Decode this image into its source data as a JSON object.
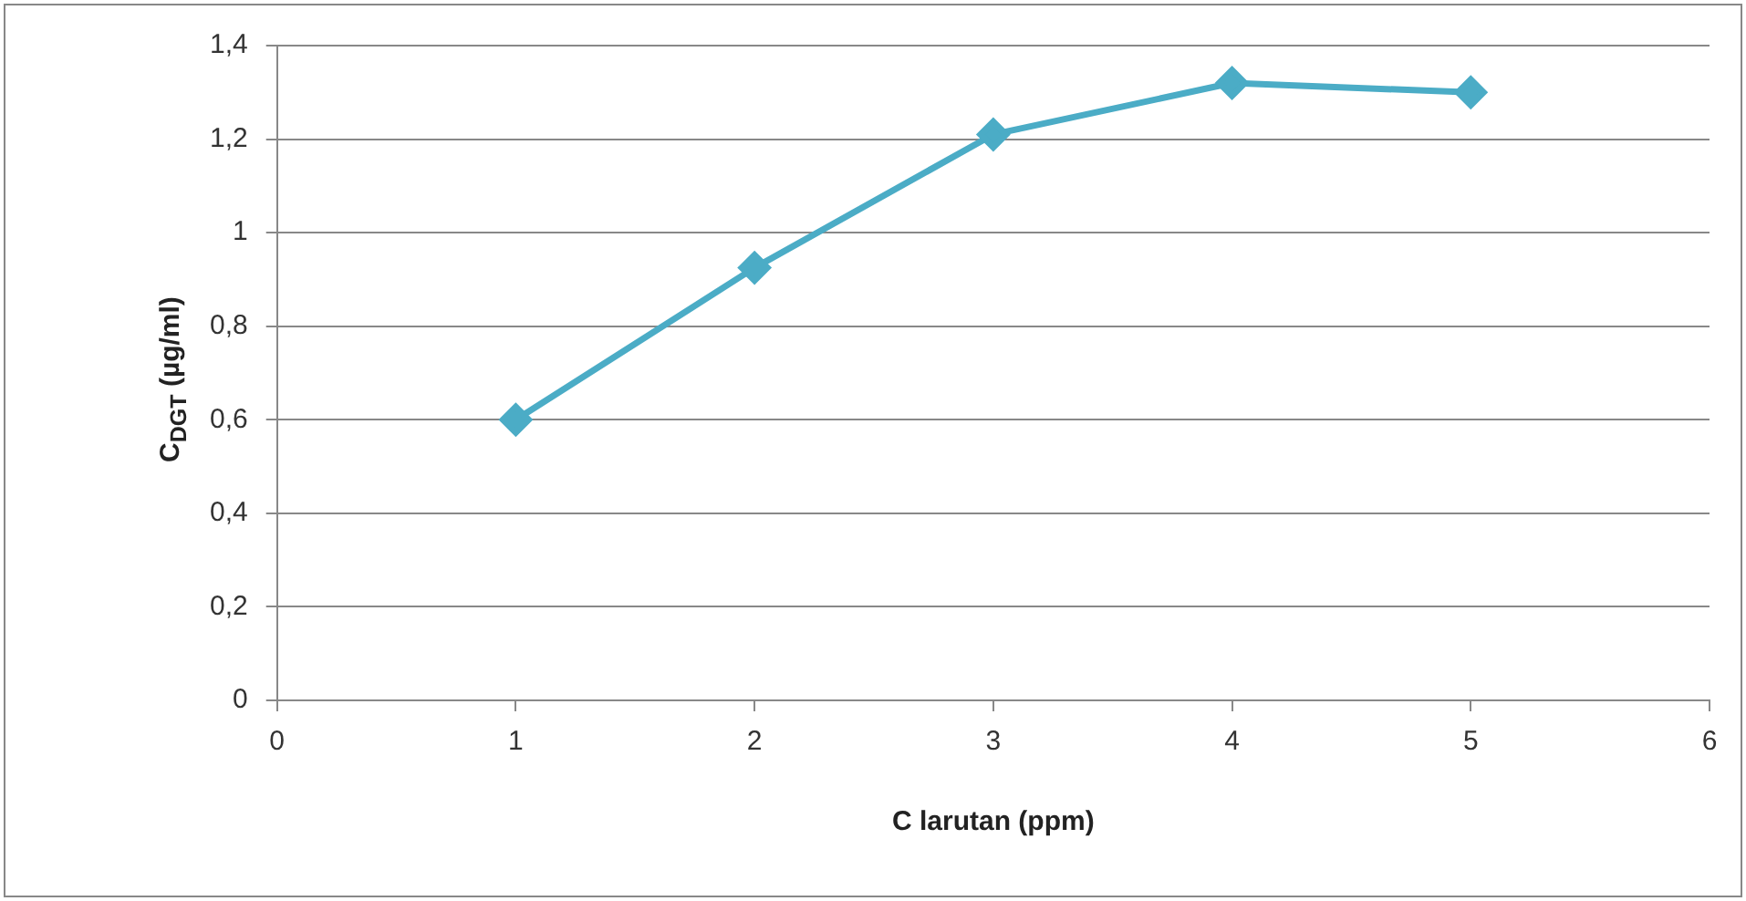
{
  "chart_data": {
    "type": "line",
    "xlabel": "C larutan (ppm)",
    "ylabel": "C$_{DGT}$ (µg/ml)",
    "x": [
      1,
      2,
      3,
      4,
      5
    ],
    "series": [
      {
        "color": "#4bacc6",
        "values": [
          0.6,
          0.925,
          1.21,
          1.32,
          1.3
        ]
      }
    ],
    "xlim": [
      0,
      6
    ],
    "xticks": [
      0,
      1,
      2,
      3,
      4,
      5,
      6
    ],
    "ylim": [
      0,
      1.4
    ],
    "yticks": [
      0,
      {
        "value": 0.2,
        "label": "0,2"
      },
      {
        "value": 0.4,
        "label": "0,4"
      },
      {
        "value": 0.6,
        "label": "0,6"
      },
      {
        "value": 0.8,
        "label": "0,8"
      },
      1,
      {
        "value": 1.2,
        "label": "1,2"
      },
      {
        "value": 1.4,
        "label": "1,4"
      }
    ],
    "grid": "y",
    "legend": false,
    "marker": "diamond",
    "line_style": "solid"
  }
}
